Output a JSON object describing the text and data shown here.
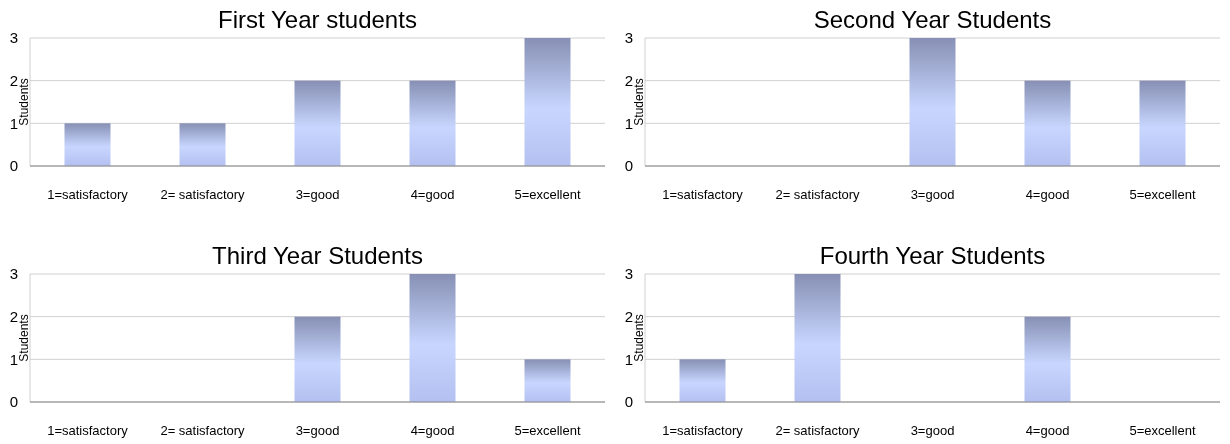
{
  "chart_data": [
    {
      "type": "bar",
      "title": "First Year students",
      "ylabel": "Students",
      "categories": [
        "1=satisfactory",
        "2= satisfactory",
        "3=good",
        "4=good",
        "5=excellent"
      ],
      "values": [
        1,
        1,
        2,
        2,
        3
      ],
      "color": "#b4c0f0",
      "ylim": [
        0,
        3
      ],
      "yticks": [
        0,
        1,
        2,
        3
      ],
      "grid": "y"
    },
    {
      "type": "bar",
      "title": "Second Year Students",
      "ylabel": "Students",
      "categories": [
        "1=satisfactory",
        "2= satisfactory",
        "3=good",
        "4=good",
        "5=excellent"
      ],
      "values": [
        0,
        0,
        3,
        2,
        2
      ],
      "color": "#b4c0f0",
      "ylim": [
        0,
        3
      ],
      "yticks": [
        0,
        1,
        2,
        3
      ],
      "grid": "y"
    },
    {
      "type": "bar",
      "title": "Third Year Students",
      "ylabel": "Students",
      "categories": [
        "1=satisfactory",
        "2= satisfactory",
        "3=good",
        "4=good",
        "5=excellent"
      ],
      "values": [
        0,
        0,
        2,
        3,
        1
      ],
      "color": "#b4c0f0",
      "ylim": [
        0,
        3
      ],
      "yticks": [
        0,
        1,
        2,
        3
      ],
      "grid": "y"
    },
    {
      "type": "bar",
      "title": "Fourth Year Students",
      "ylabel": "Students",
      "categories": [
        "1=satisfactory",
        "2= satisfactory",
        "3=good",
        "4=good",
        "5=excellent"
      ],
      "values": [
        1,
        3,
        0,
        2,
        0
      ],
      "color": "#b4c0f0",
      "ylim": [
        0,
        3
      ],
      "yticks": [
        0,
        1,
        2,
        3
      ],
      "grid": "y"
    }
  ]
}
